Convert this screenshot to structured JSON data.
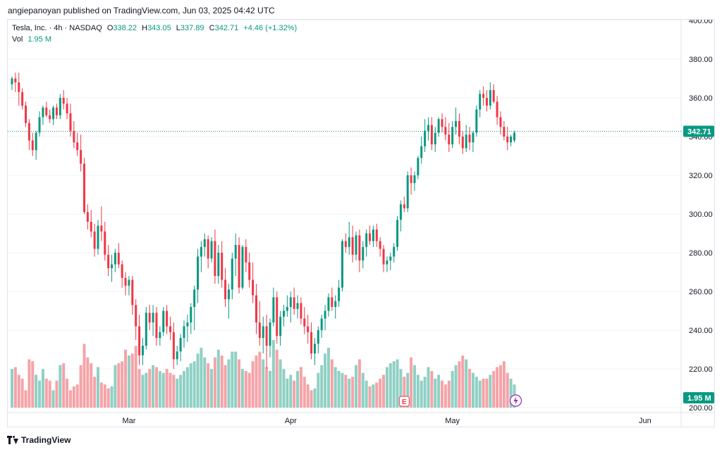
{
  "publisher": "angiepanoyan published on TradingView.com, Jun 03, 2025 04:42 UTC",
  "legend": {
    "symbol": "Tesla, Inc. · 4h · NASDAQ",
    "o_label": "O",
    "o_value": "338.22",
    "h_label": "H",
    "h_value": "343.05",
    "l_label": "L",
    "l_value": "337.89",
    "c_label": "C",
    "c_value": "342.71",
    "change": "+4.46 (+1.32%)",
    "vol_label": "Vol",
    "vol_value": "1.95 M"
  },
  "footer": {
    "brand": "TradingView"
  },
  "colors": {
    "up": "#089981",
    "down": "#f23645",
    "vol_up": "#8fd0c4",
    "vol_down": "#f5a3a8",
    "grid": "#f0f3fa",
    "axis_text": "#131722"
  },
  "earnings_marker": "E",
  "chart_data": {
    "type": "candlestick",
    "symbol": "TSLA",
    "timeframe": "4h",
    "ylim": [
      200,
      400
    ],
    "y_ticks": [
      200,
      220,
      240,
      260,
      280,
      300,
      320,
      340,
      360,
      380,
      400
    ],
    "x_labels": [
      {
        "label": "Mar",
        "index": 34
      },
      {
        "label": "Apr",
        "index": 81
      },
      {
        "label": "May",
        "index": 128
      },
      {
        "label": "Jun",
        "index": 184
      }
    ],
    "last_price": 342.71,
    "last_price_label": "342.71",
    "last_volume_label": "1.95 M",
    "earnings_index": 114,
    "ohlc": [
      [
        367,
        371,
        364,
        370
      ],
      [
        370,
        373,
        363,
        368
      ],
      [
        368,
        373,
        356,
        363
      ],
      [
        363,
        365,
        354,
        356
      ],
      [
        356,
        358,
        345,
        347
      ],
      [
        347,
        349,
        333,
        338
      ],
      [
        338,
        342,
        330,
        333
      ],
      [
        333,
        343,
        328,
        342
      ],
      [
        342,
        353,
        340,
        350
      ],
      [
        350,
        356,
        346,
        355
      ],
      [
        355,
        358,
        350,
        351
      ],
      [
        351,
        354,
        347,
        349
      ],
      [
        349,
        356,
        346,
        355
      ],
      [
        355,
        357,
        349,
        351
      ],
      [
        351,
        362,
        349,
        360
      ],
      [
        360,
        364,
        354,
        357
      ],
      [
        357,
        360,
        349,
        352
      ],
      [
        352,
        357,
        340,
        343
      ],
      [
        343,
        348,
        334,
        337
      ],
      [
        337,
        342,
        330,
        333
      ],
      [
        333,
        341,
        322,
        326
      ],
      [
        326,
        329,
        300,
        301
      ],
      [
        301,
        305,
        292,
        296
      ],
      [
        296,
        302,
        288,
        291
      ],
      [
        291,
        295,
        278,
        282
      ],
      [
        282,
        297,
        279,
        294
      ],
      [
        294,
        304,
        286,
        291
      ],
      [
        291,
        296,
        276,
        279
      ],
      [
        279,
        284,
        268,
        272
      ],
      [
        272,
        279,
        265,
        274
      ],
      [
        274,
        282,
        270,
        280
      ],
      [
        280,
        285,
        272,
        274
      ],
      [
        274,
        276,
        262,
        267
      ],
      [
        267,
        270,
        258,
        263
      ],
      [
        263,
        268,
        258,
        266
      ],
      [
        266,
        268,
        248,
        253
      ],
      [
        253,
        256,
        235,
        242
      ],
      [
        242,
        248,
        222,
        227
      ],
      [
        227,
        236,
        222,
        232
      ],
      [
        232,
        252,
        230,
        249
      ],
      [
        249,
        253,
        240,
        244
      ],
      [
        244,
        253,
        237,
        249
      ],
      [
        249,
        252,
        232,
        236
      ],
      [
        236,
        242,
        232,
        239
      ],
      [
        239,
        252,
        237,
        250
      ],
      [
        250,
        253,
        238,
        242
      ],
      [
        242,
        247,
        235,
        239
      ],
      [
        239,
        244,
        220,
        225
      ],
      [
        225,
        232,
        222,
        229
      ],
      [
        229,
        238,
        224,
        236
      ],
      [
        236,
        245,
        231,
        242
      ],
      [
        242,
        248,
        234,
        244
      ],
      [
        244,
        254,
        238,
        252
      ],
      [
        252,
        263,
        240,
        261
      ],
      [
        261,
        282,
        254,
        278
      ],
      [
        278,
        286,
        270,
        283
      ],
      [
        283,
        290,
        278,
        287
      ],
      [
        287,
        289,
        272,
        277
      ],
      [
        277,
        288,
        275,
        286
      ],
      [
        286,
        292,
        264,
        268
      ],
      [
        268,
        284,
        264,
        280
      ],
      [
        280,
        286,
        262,
        266
      ],
      [
        266,
        272,
        252,
        256
      ],
      [
        256,
        264,
        246,
        261
      ],
      [
        261,
        280,
        256,
        277
      ],
      [
        277,
        290,
        268,
        284
      ],
      [
        284,
        288,
        259,
        262
      ],
      [
        262,
        284,
        261,
        283
      ],
      [
        283,
        287,
        270,
        275
      ],
      [
        275,
        280,
        262,
        266
      ],
      [
        266,
        275,
        254,
        258
      ],
      [
        258,
        264,
        238,
        244
      ],
      [
        244,
        255,
        232,
        236
      ],
      [
        236,
        247,
        228,
        242
      ],
      [
        242,
        248,
        220,
        232
      ],
      [
        232,
        246,
        226,
        244
      ],
      [
        244,
        262,
        242,
        257
      ],
      [
        257,
        260,
        233,
        237
      ],
      [
        237,
        250,
        232,
        247
      ],
      [
        247,
        253,
        242,
        250
      ],
      [
        250,
        258,
        247,
        252
      ],
      [
        252,
        260,
        244,
        257
      ],
      [
        257,
        262,
        248,
        251
      ],
      [
        251,
        258,
        246,
        254
      ],
      [
        254,
        257,
        243,
        246
      ],
      [
        246,
        252,
        238,
        242
      ],
      [
        242,
        248,
        233,
        239
      ],
      [
        239,
        244,
        225,
        228
      ],
      [
        228,
        236,
        222,
        233
      ],
      [
        233,
        242,
        228,
        240
      ],
      [
        240,
        248,
        236,
        246
      ],
      [
        246,
        253,
        240,
        250
      ],
      [
        250,
        259,
        247,
        257
      ],
      [
        257,
        262,
        250,
        252
      ],
      [
        252,
        258,
        246,
        255
      ],
      [
        255,
        266,
        252,
        262
      ],
      [
        262,
        287,
        260,
        286
      ],
      [
        286,
        290,
        280,
        283
      ],
      [
        283,
        296,
        279,
        288
      ],
      [
        288,
        294,
        275,
        279
      ],
      [
        279,
        291,
        276,
        289
      ],
      [
        289,
        292,
        270,
        276
      ],
      [
        276,
        286,
        272,
        283
      ],
      [
        283,
        292,
        278,
        290
      ],
      [
        290,
        294,
        284,
        286
      ],
      [
        286,
        294,
        283,
        292
      ],
      [
        292,
        295,
        283,
        286
      ],
      [
        286,
        288,
        278,
        282
      ],
      [
        282,
        284,
        270,
        274
      ],
      [
        274,
        278,
        270,
        276
      ],
      [
        276,
        280,
        271,
        278
      ],
      [
        278,
        285,
        275,
        283
      ],
      [
        283,
        299,
        281,
        297
      ],
      [
        297,
        307,
        291,
        305
      ],
      [
        305,
        309,
        301,
        303
      ],
      [
        303,
        322,
        301,
        320
      ],
      [
        320,
        324,
        310,
        316
      ],
      [
        316,
        322,
        312,
        320
      ],
      [
        320,
        330,
        318,
        329
      ],
      [
        329,
        340,
        326,
        335
      ],
      [
        335,
        349,
        332,
        343
      ],
      [
        343,
        350,
        338,
        346
      ],
      [
        346,
        350,
        333,
        336
      ],
      [
        336,
        345,
        332,
        342
      ],
      [
        342,
        350,
        340,
        349
      ],
      [
        349,
        352,
        342,
        345
      ],
      [
        345,
        350,
        338,
        341
      ],
      [
        341,
        347,
        332,
        336
      ],
      [
        336,
        348,
        334,
        345
      ],
      [
        345,
        355,
        341,
        348
      ],
      [
        348,
        352,
        336,
        340
      ],
      [
        340,
        343,
        331,
        334
      ],
      [
        334,
        346,
        332,
        341
      ],
      [
        341,
        345,
        333,
        337
      ],
      [
        337,
        343,
        332,
        342
      ],
      [
        342,
        356,
        340,
        354
      ],
      [
        354,
        364,
        350,
        362
      ],
      [
        362,
        366,
        356,
        360
      ],
      [
        360,
        364,
        353,
        356
      ],
      [
        356,
        368,
        354,
        364
      ],
      [
        364,
        367,
        357,
        358
      ],
      [
        358,
        361,
        346,
        350
      ],
      [
        350,
        353,
        341,
        345
      ],
      [
        345,
        348,
        338,
        340
      ],
      [
        340,
        345,
        333,
        337
      ],
      [
        337,
        341,
        335,
        340
      ],
      [
        338,
        343,
        337,
        342
      ]
    ],
    "volumes": [
      20,
      21,
      17,
      15,
      9,
      25,
      24,
      17,
      14,
      20,
      15,
      14,
      9,
      14,
      22,
      23,
      15,
      9,
      11,
      12,
      22,
      33,
      26,
      23,
      16,
      21,
      13,
      12,
      10,
      11,
      22,
      23,
      24,
      30,
      27,
      28,
      32,
      20,
      17,
      18,
      20,
      22,
      21,
      19,
      18,
      20,
      18,
      17,
      15,
      17,
      19,
      21,
      23,
      24,
      28,
      31,
      26,
      23,
      20,
      26,
      30,
      27,
      22,
      25,
      29,
      29,
      25,
      20,
      19,
      18,
      24,
      27,
      29,
      25,
      21,
      19,
      35,
      30,
      25,
      20,
      15,
      17,
      14,
      19,
      21,
      16,
      12,
      9,
      10,
      18,
      22,
      28,
      31,
      25,
      21,
      19,
      18,
      17,
      15,
      16,
      22,
      25,
      18,
      14,
      11,
      12,
      13,
      15,
      17,
      21,
      23,
      24,
      25,
      20,
      16,
      18,
      26,
      22,
      17,
      14,
      16,
      21,
      19,
      15,
      17,
      14,
      12,
      14,
      19,
      22,
      24,
      27,
      25,
      20,
      18,
      16,
      14,
      15,
      15,
      17,
      19,
      21,
      22,
      24,
      18,
      15,
      12,
      13,
      15,
      14,
      13,
      15,
      14,
      12
    ]
  }
}
